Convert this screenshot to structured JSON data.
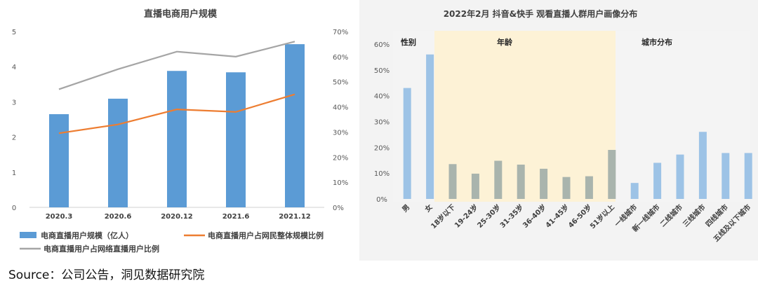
{
  "source_note": "Source：公司公告，洞见数据研究院",
  "colors": {
    "bar": "#5b9bd5",
    "orange": "#ed7d31",
    "gray": "#a5a5a5",
    "bar_light": "#9dc3e6",
    "bar_gray": "#a9b4ad",
    "age_bg": "#fdf2d6",
    "gender_bg": "#f4f4f4",
    "city_bg": "#f4f4f4"
  },
  "chart_data": [
    {
      "type": "bar",
      "title": "直播电商用户规模",
      "categories": [
        "2020.3",
        "2020.6",
        "2020.12",
        "2021.6",
        "2021.12"
      ],
      "y_ticks": [
        "0",
        "1",
        "2",
        "3",
        "4",
        "5"
      ],
      "y2_ticks": [
        "0%",
        "10%",
        "20%",
        "30%",
        "40%",
        "50%",
        "60%",
        "70%"
      ],
      "ylim": [
        0,
        5
      ],
      "y2lim": [
        0,
        0.7
      ],
      "series": [
        {
          "name": "电商直播用户规模（亿人）",
          "kind": "bar",
          "axis": "left",
          "values": [
            2.65,
            3.09,
            3.88,
            3.84,
            4.64
          ]
        },
        {
          "name": "电商直播用户占网民整体规模比例",
          "kind": "line",
          "axis": "right",
          "color": "orange",
          "values": [
            0.295,
            0.33,
            0.39,
            0.38,
            0.45
          ]
        },
        {
          "name": "电商直播用户占网络直播用户比例",
          "kind": "line",
          "axis": "right",
          "color": "gray",
          "values": [
            0.47,
            0.55,
            0.62,
            0.6,
            0.66
          ]
        }
      ],
      "legend": "bottom"
    },
    {
      "type": "bar",
      "title": "2022年2月 抖音&快手 观看直播人群用户画像分布",
      "y_ticks": [
        "0%",
        "10%",
        "20%",
        "30%",
        "40%",
        "50%",
        "60%"
      ],
      "ylim": [
        0,
        0.6
      ],
      "groups": [
        {
          "label": "性别",
          "categories": [
            "男",
            "女"
          ],
          "values": [
            0.43,
            0.56
          ],
          "color": "bar_light"
        },
        {
          "label": "年龄",
          "categories": [
            "18岁以下",
            "19-24岁",
            "25-30岁",
            "31-35岁",
            "36-40岁",
            "41-45岁",
            "46-50岁",
            "51岁以上"
          ],
          "values": [
            0.135,
            0.098,
            0.148,
            0.133,
            0.117,
            0.085,
            0.088,
            0.19
          ],
          "color": "bar_gray"
        },
        {
          "label": "城市分布",
          "categories": [
            "一线城市",
            "新一线城市",
            "二线城市",
            "三线城市",
            "四线城市",
            "五线及以下城市"
          ],
          "values": [
            0.062,
            0.14,
            0.172,
            0.26,
            0.178,
            0.178
          ],
          "color": "bar_light"
        }
      ]
    }
  ]
}
